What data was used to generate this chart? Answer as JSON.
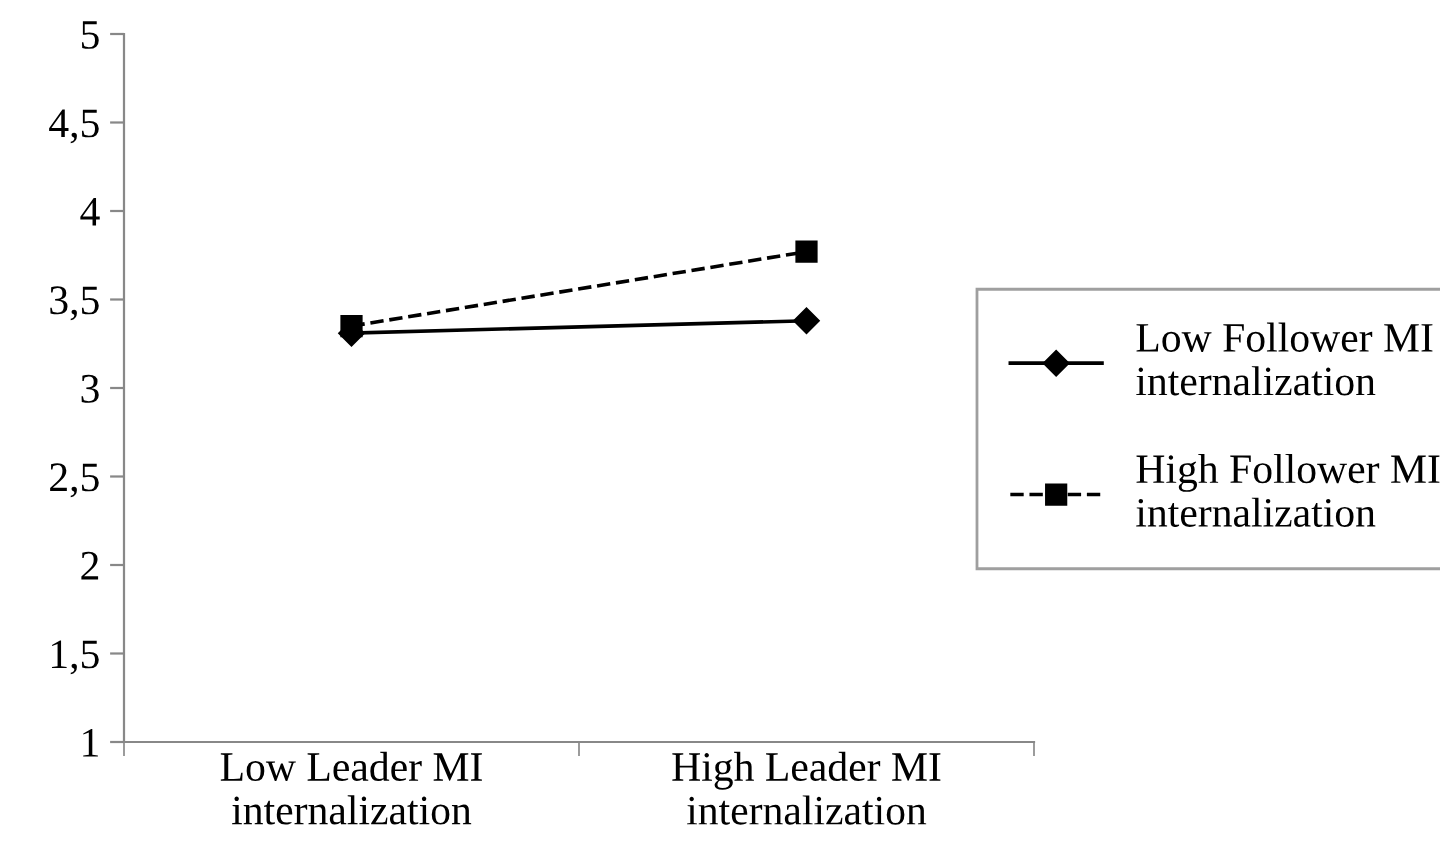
{
  "chart_data": {
    "type": "line",
    "categories": [
      "Low Leader MI\ninternalization",
      "High Leader MI\ninternalization"
    ],
    "series": [
      {
        "name": "Low Follower MI\ninternalization",
        "color": "#000000",
        "values": [
          3.31,
          3.38
        ],
        "marker": "diamond",
        "line_style": "solid"
      },
      {
        "name": "High Follower MI\ninternalization",
        "color": "#000000",
        "values": [
          3.35,
          3.77
        ],
        "marker": "square",
        "line_style": "dashed"
      }
    ],
    "ylim": [
      1,
      5
    ],
    "yticks": [
      1,
      {
        "value": 1.5,
        "label": "1,5"
      },
      2,
      {
        "value": 2.5,
        "label": "2,5"
      },
      3,
      {
        "value": 3.5,
        "label": "3,5"
      },
      4,
      {
        "value": 4.5,
        "label": "4,5"
      },
      5
    ],
    "grid": false,
    "legend": "right"
  }
}
